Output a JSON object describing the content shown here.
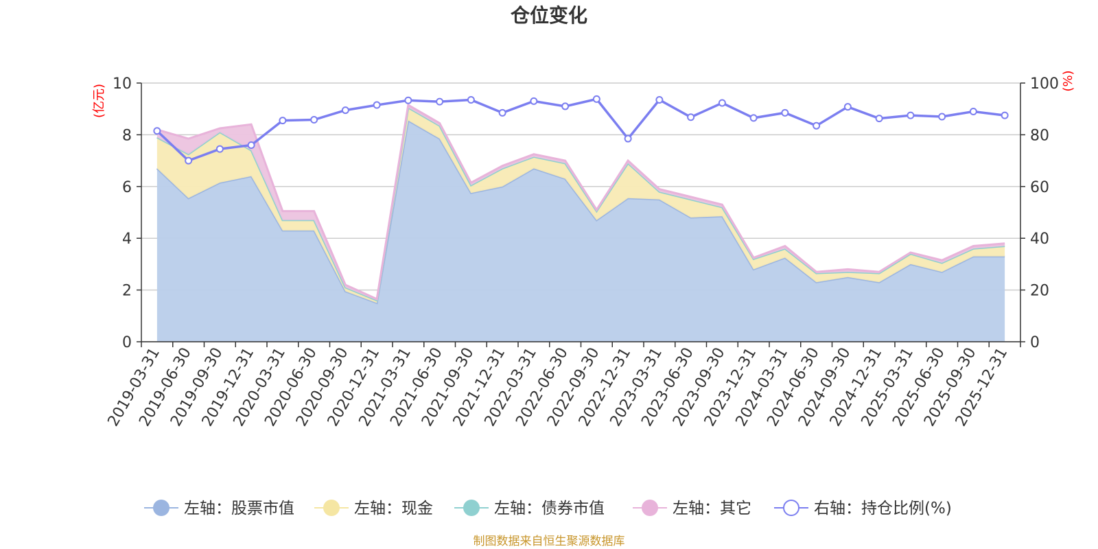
{
  "chart_data": {
    "type": "area",
    "title": "仓位变化",
    "source": "制图数据来自恒生聚源数据库",
    "left_axis": {
      "unit": "(亿元)",
      "ylim": [
        0,
        10
      ],
      "ticks": [
        "0",
        "2",
        "4",
        "6",
        "8",
        "10"
      ]
    },
    "right_axis": {
      "unit": "(%)",
      "ylim": [
        0,
        100
      ],
      "ticks": [
        "0",
        "20",
        "40",
        "60",
        "80",
        "100"
      ]
    },
    "categories": [
      "2019-03-31",
      "2019-06-30",
      "2019-09-30",
      "2019-12-31",
      "2020-03-31",
      "2020-06-30",
      "2020-09-30",
      "2020-12-31",
      "2021-03-31",
      "2021-06-30",
      "2021-09-30",
      "2021-12-31",
      "2022-03-31",
      "2022-06-30",
      "2022-09-30",
      "2022-12-31",
      "2023-03-31",
      "2023-06-30",
      "2023-09-30",
      "2023-12-31",
      "2024-03-31",
      "2024-06-30",
      "2024-09-30",
      "2024-12-31",
      "2025-03-31",
      "2025-06-30",
      "2025-09-30",
      "2025-12-31"
    ],
    "series": [
      {
        "name": "左轴：股票市值",
        "axis": "left",
        "color": "#9bb5e0",
        "fill": "#b9cdea",
        "values": [
          6.7,
          5.55,
          6.15,
          6.4,
          4.3,
          4.3,
          1.95,
          1.5,
          8.55,
          7.85,
          5.75,
          6.0,
          6.7,
          6.3,
          4.7,
          5.55,
          5.5,
          4.8,
          4.85,
          2.8,
          3.25,
          2.3,
          2.5,
          2.3,
          3.0,
          2.7,
          3.3,
          3.3
        ]
      },
      {
        "name": "左轴：现金",
        "axis": "left",
        "color": "#f5e6a3",
        "fill": "#f8eab4",
        "values": [
          1.2,
          1.7,
          1.95,
          1.0,
          0.4,
          0.4,
          0.15,
          0.1,
          0.5,
          0.5,
          0.3,
          0.7,
          0.45,
          0.6,
          0.35,
          1.35,
          0.3,
          0.7,
          0.35,
          0.4,
          0.35,
          0.35,
          0.2,
          0.35,
          0.4,
          0.35,
          0.3,
          0.4
        ]
      },
      {
        "name": "左轴：债券市值",
        "axis": "left",
        "color": "#8fd0d0",
        "fill": "#9fd5d5",
        "values": [
          0,
          0,
          0,
          0,
          0,
          0,
          0,
          0,
          0,
          0,
          0,
          0,
          0,
          0,
          0,
          0,
          0,
          0,
          0,
          0,
          0,
          0,
          0,
          0,
          0,
          0,
          0,
          0
        ]
      },
      {
        "name": "左轴：其它",
        "axis": "left",
        "color": "#e8b3da",
        "fill": "#ecc3df",
        "values": [
          0.3,
          0.6,
          0.15,
          1.0,
          0.35,
          0.35,
          0.1,
          0.05,
          0.1,
          0.1,
          0.1,
          0.1,
          0.1,
          0.1,
          0.05,
          0.1,
          0.1,
          0.1,
          0.1,
          0.05,
          0.1,
          0.05,
          0.1,
          0.05,
          0.05,
          0.1,
          0.1,
          0.1
        ]
      },
      {
        "name": "右轴：持仓比例(%)",
        "axis": "right",
        "color": "#7b7ef0",
        "values": [
          81.5,
          70,
          74.5,
          76,
          85.5,
          85.8,
          89.5,
          91.5,
          93.3,
          92.8,
          93.5,
          88.5,
          93,
          91,
          93.8,
          78.5,
          93.5,
          86.8,
          92.3,
          86.5,
          88.5,
          83.5,
          90.8,
          86.3,
          87.5,
          87,
          89,
          87.5
        ]
      }
    ]
  }
}
